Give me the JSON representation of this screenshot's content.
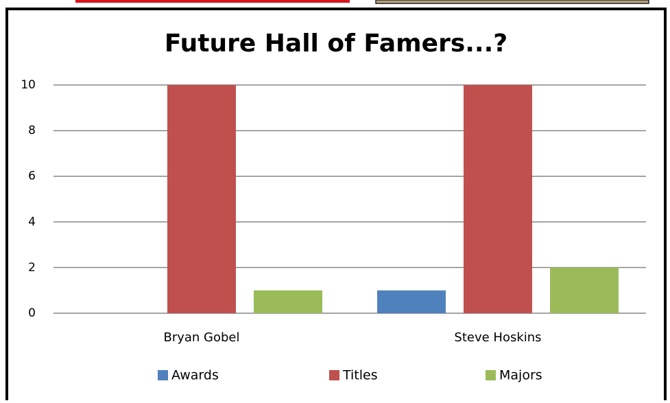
{
  "chart_data": {
    "type": "bar",
    "title": "Future Hall of Famers...?",
    "categories": [
      "Bryan Gobel",
      "Steve Hoskins"
    ],
    "series": [
      {
        "name": "Awards",
        "color": "#4f81bd",
        "values": [
          0,
          1
        ]
      },
      {
        "name": "Titles",
        "color": "#c0504d",
        "values": [
          10,
          10
        ]
      },
      {
        "name": "Majors",
        "color": "#9bbb59",
        "values": [
          1,
          2
        ]
      }
    ],
    "ylim": [
      0,
      10
    ],
    "yticks": [
      0,
      2,
      4,
      6,
      8,
      10
    ],
    "grid": true,
    "legend": "bottom"
  }
}
